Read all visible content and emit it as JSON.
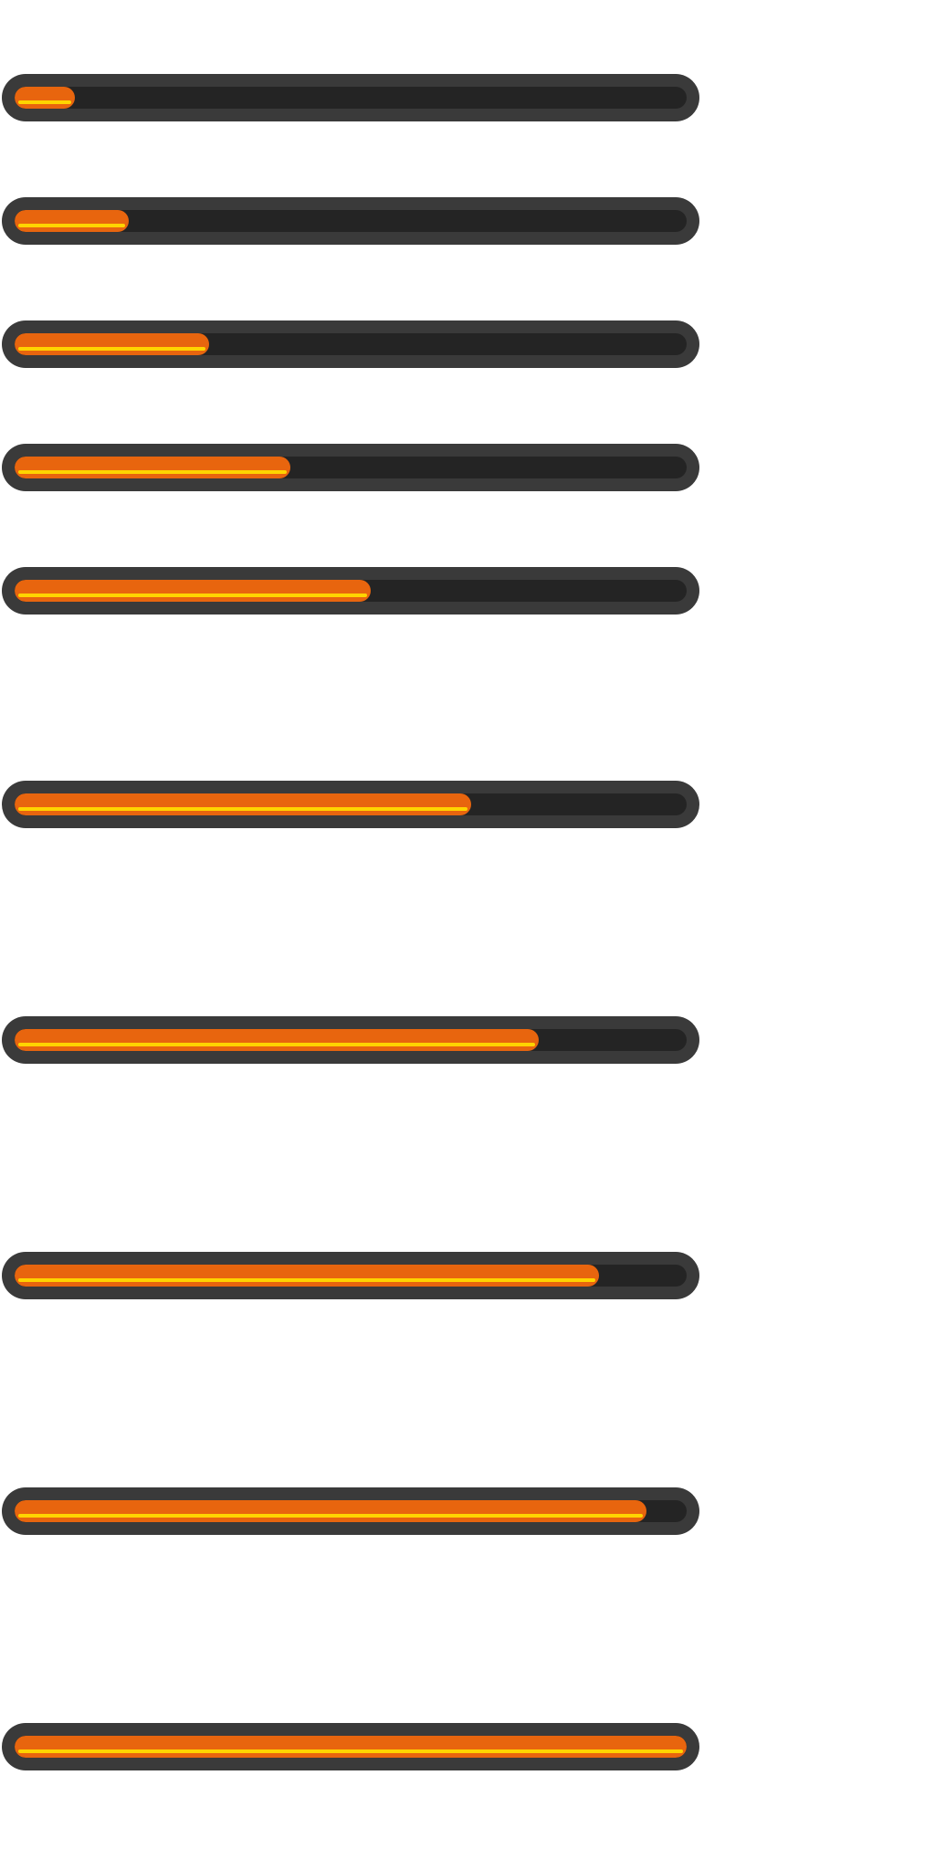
{
  "colors": {
    "background": "#ffffff",
    "frame": "#3a3a3a",
    "track": "#242424",
    "fill": "#e8650e",
    "highlight": "#ffd400"
  },
  "progress_bars": [
    {
      "value": 0.09
    },
    {
      "value": 0.17
    },
    {
      "value": 0.29
    },
    {
      "value": 0.41
    },
    {
      "value": 0.53
    },
    {
      "value": 0.68
    },
    {
      "value": 0.78
    },
    {
      "value": 0.87
    },
    {
      "value": 0.94
    },
    {
      "value": 1.0
    }
  ]
}
